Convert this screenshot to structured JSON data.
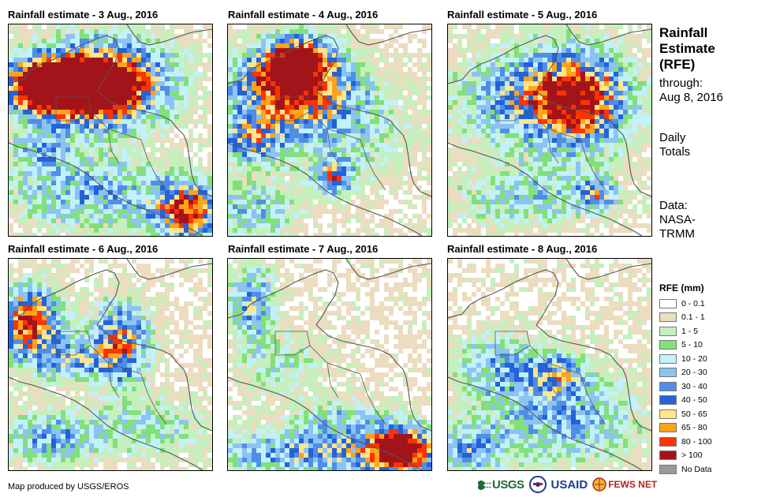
{
  "panels": [
    {
      "title": "Rainfall estimate - 3 Aug., 2016"
    },
    {
      "title": "Rainfall estimate - 4 Aug., 2016"
    },
    {
      "title": "Rainfall estimate - 5 Aug., 2016"
    },
    {
      "title": "Rainfall estimate - 6 Aug., 2016"
    },
    {
      "title": "Rainfall estimate - 7 Aug., 2016"
    },
    {
      "title": "Rainfall estimate - 8 Aug., 2016"
    }
  ],
  "sidebar": {
    "title_line1": "Rainfall",
    "title_line2": "Estimate",
    "title_line3": "(RFE)",
    "through_label": "through:",
    "through_date": "Aug 8, 2016",
    "daily_line1": "Daily",
    "daily_line2": "Totals",
    "data_line1": "Data:",
    "data_line2": "NASA-",
    "data_line3": "TRMM"
  },
  "legend": {
    "title": "RFE (mm)",
    "items": [
      {
        "label": "0 - 0.1",
        "color": "#ffffff"
      },
      {
        "label": "0.1 - 1",
        "color": "#ecdcc0"
      },
      {
        "label": "1 - 5",
        "color": "#c6efbe"
      },
      {
        "label": "5 - 10",
        "color": "#82e07a"
      },
      {
        "label": "10 - 20",
        "color": "#c2f1fa"
      },
      {
        "label": "20 - 30",
        "color": "#8cc3f3"
      },
      {
        "label": "30 - 40",
        "color": "#4f8ee8"
      },
      {
        "label": "40 - 50",
        "color": "#2462d8"
      },
      {
        "label": "50 - 65",
        "color": "#ffe58a"
      },
      {
        "label": "65 - 80",
        "color": "#ffa31a"
      },
      {
        "label": "80 - 100",
        "color": "#ff3300"
      },
      {
        "label": "> 100",
        "color": "#a3141a"
      },
      {
        "label": "No Data",
        "color": "#999999"
      }
    ]
  },
  "footer": {
    "credit": "Map produced by USGS/EROS",
    "logo_usgs": "USGS",
    "logo_usaid": "USAID",
    "logo_fews": "FEWS NET"
  }
}
